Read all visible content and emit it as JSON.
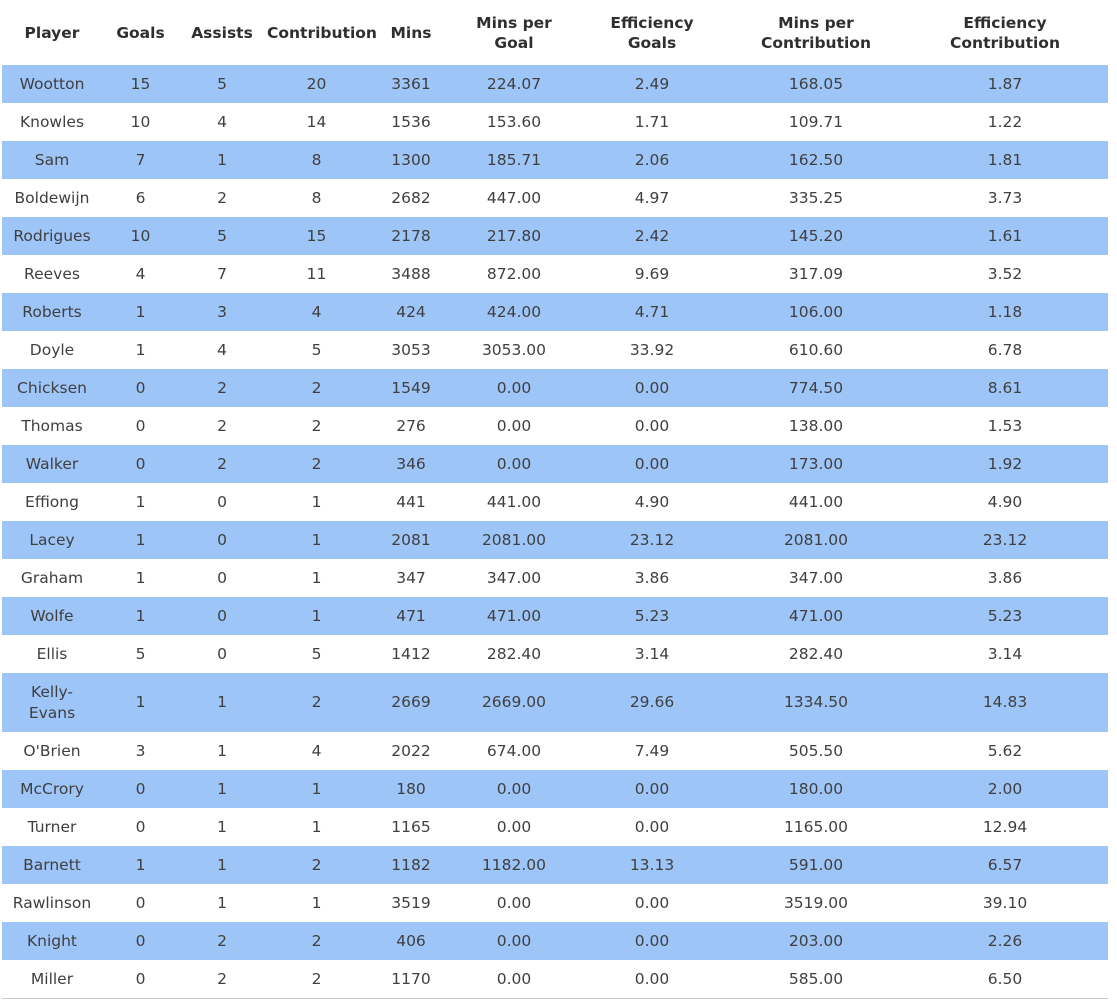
{
  "chart_data": {
    "type": "table",
    "columns": [
      "Player",
      "Goals",
      "Assists",
      "Contribution",
      "Mins",
      "Mins per\nGoal",
      "Efficiency\nGoals",
      "Mins per\nContribution",
      "Efficiency\nContribution"
    ],
    "rows": [
      [
        "Wootton",
        "15",
        "5",
        "20",
        "3361",
        "224.07",
        "2.49",
        "168.05",
        "1.87"
      ],
      [
        "Knowles",
        "10",
        "4",
        "14",
        "1536",
        "153.60",
        "1.71",
        "109.71",
        "1.22"
      ],
      [
        "Sam",
        "7",
        "1",
        "8",
        "1300",
        "185.71",
        "2.06",
        "162.50",
        "1.81"
      ],
      [
        "Boldewijn",
        "6",
        "2",
        "8",
        "2682",
        "447.00",
        "4.97",
        "335.25",
        "3.73"
      ],
      [
        "Rodrigues",
        "10",
        "5",
        "15",
        "2178",
        "217.80",
        "2.42",
        "145.20",
        "1.61"
      ],
      [
        "Reeves",
        "4",
        "7",
        "11",
        "3488",
        "872.00",
        "9.69",
        "317.09",
        "3.52"
      ],
      [
        "Roberts",
        "1",
        "3",
        "4",
        "424",
        "424.00",
        "4.71",
        "106.00",
        "1.18"
      ],
      [
        "Doyle",
        "1",
        "4",
        "5",
        "3053",
        "3053.00",
        "33.92",
        "610.60",
        "6.78"
      ],
      [
        "Chicksen",
        "0",
        "2",
        "2",
        "1549",
        "0.00",
        "0.00",
        "774.50",
        "8.61"
      ],
      [
        "Thomas",
        "0",
        "2",
        "2",
        "276",
        "0.00",
        "0.00",
        "138.00",
        "1.53"
      ],
      [
        "Walker",
        "0",
        "2",
        "2",
        "346",
        "0.00",
        "0.00",
        "173.00",
        "1.92"
      ],
      [
        "Effiong",
        "1",
        "0",
        "1",
        "441",
        "441.00",
        "4.90",
        "441.00",
        "4.90"
      ],
      [
        "Lacey",
        "1",
        "0",
        "1",
        "2081",
        "2081.00",
        "23.12",
        "2081.00",
        "23.12"
      ],
      [
        "Graham",
        "1",
        "0",
        "1",
        "347",
        "347.00",
        "3.86",
        "347.00",
        "3.86"
      ],
      [
        "Wolfe",
        "1",
        "0",
        "1",
        "471",
        "471.00",
        "5.23",
        "471.00",
        "5.23"
      ],
      [
        "Ellis",
        "5",
        "0",
        "5",
        "1412",
        "282.40",
        "3.14",
        "282.40",
        "3.14"
      ],
      [
        "Kelly-Evans",
        "1",
        "1",
        "2",
        "2669",
        "2669.00",
        "29.66",
        "1334.50",
        "14.83"
      ],
      [
        "O'Brien",
        "3",
        "1",
        "4",
        "2022",
        "674.00",
        "7.49",
        "505.50",
        "5.62"
      ],
      [
        "McCrory",
        "0",
        "1",
        "1",
        "180",
        "0.00",
        "0.00",
        "180.00",
        "2.00"
      ],
      [
        "Turner",
        "0",
        "1",
        "1",
        "1165",
        "0.00",
        "0.00",
        "1165.00",
        "12.94"
      ],
      [
        "Barnett",
        "1",
        "1",
        "2",
        "1182",
        "1182.00",
        "13.13",
        "591.00",
        "6.57"
      ],
      [
        "Rawlinson",
        "0",
        "1",
        "1",
        "3519",
        "0.00",
        "0.00",
        "3519.00",
        "39.10"
      ],
      [
        "Knight",
        "0",
        "2",
        "2",
        "406",
        "0.00",
        "0.00",
        "203.00",
        "2.26"
      ],
      [
        "Miller",
        "0",
        "2",
        "2",
        "1170",
        "0.00",
        "0.00",
        "585.00",
        "6.50"
      ]
    ],
    "layout": {
      "striped": true,
      "stripe_pattern": "rows 1,3,5,... (1-based odd rows) highlighted",
      "grid": false,
      "legend": "none"
    }
  },
  "colors": {
    "row_highlight": "#9ec5f8",
    "row_default": "#ffffff",
    "body_text": "#3f3f3f",
    "header_text": "#2f2f2f",
    "bottom_border": "#c9c9c9"
  }
}
